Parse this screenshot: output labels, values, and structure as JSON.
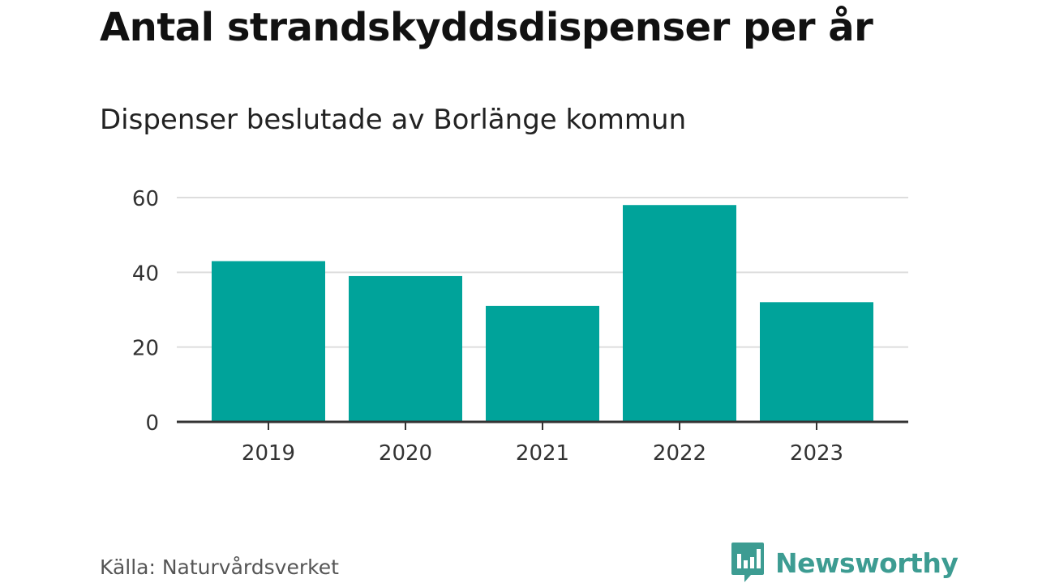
{
  "chart_data": {
    "type": "bar",
    "title": "Antal strandskyddsdispenser per år",
    "subtitle": "Dispenser beslutade av Borlänge kommun",
    "categories": [
      "2019",
      "2020",
      "2021",
      "2022",
      "2023"
    ],
    "values": [
      43,
      39,
      31,
      58,
      32
    ],
    "xlabel": "",
    "ylabel": "",
    "ylim": [
      0,
      60
    ],
    "yticks": [
      "0",
      "20",
      "40",
      "60"
    ],
    "grid": true,
    "bar_color": "#00a39a"
  },
  "footer": {
    "source": "Källa: Naturvårdsverket",
    "brand": "Newsworthy"
  },
  "colors": {
    "brand": "#3d9c92",
    "grid": "#dddddd",
    "axis": "#333333"
  }
}
